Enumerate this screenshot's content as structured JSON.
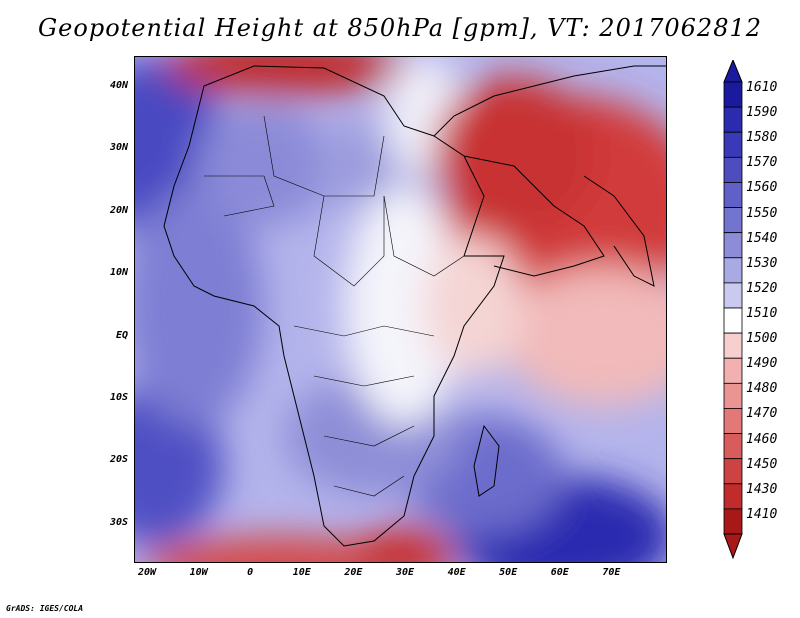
{
  "title": "Geopotential Height at 850hPa [gpm], VT: 2017062812",
  "credit": "GrADS: IGES/COLA",
  "y_ticks": [
    "40N",
    "30N",
    "20N",
    "10N",
    "EQ",
    "10S",
    "20S",
    "30S"
  ],
  "x_ticks": [
    "20W",
    "10W",
    "0",
    "10E",
    "20E",
    "30E",
    "40E",
    "50E",
    "60E",
    "70E"
  ],
  "legend": {
    "labels": [
      "1610",
      "1590",
      "1580",
      "1570",
      "1560",
      "1550",
      "1540",
      "1530",
      "1520",
      "1510",
      "1500",
      "1490",
      "1480",
      "1470",
      "1460",
      "1450",
      "1430",
      "1410"
    ],
    "colors": [
      "#1a1a9e",
      "#2b2bb0",
      "#3a3ab8",
      "#4d4dc0",
      "#6060c8",
      "#7373d0",
      "#8c8cd8",
      "#a9a9e4",
      "#cacaf0",
      "#ffffff",
      "#f7cfcf",
      "#f2b0b0",
      "#eb9494",
      "#e27878",
      "#d85c5c",
      "#cd4343",
      "#c02c2c",
      "#a81818"
    ]
  },
  "colors": {
    "high": "#3333aa",
    "mid": "#ffffff",
    "low": "#c02020",
    "land_outline": "#000000"
  }
}
